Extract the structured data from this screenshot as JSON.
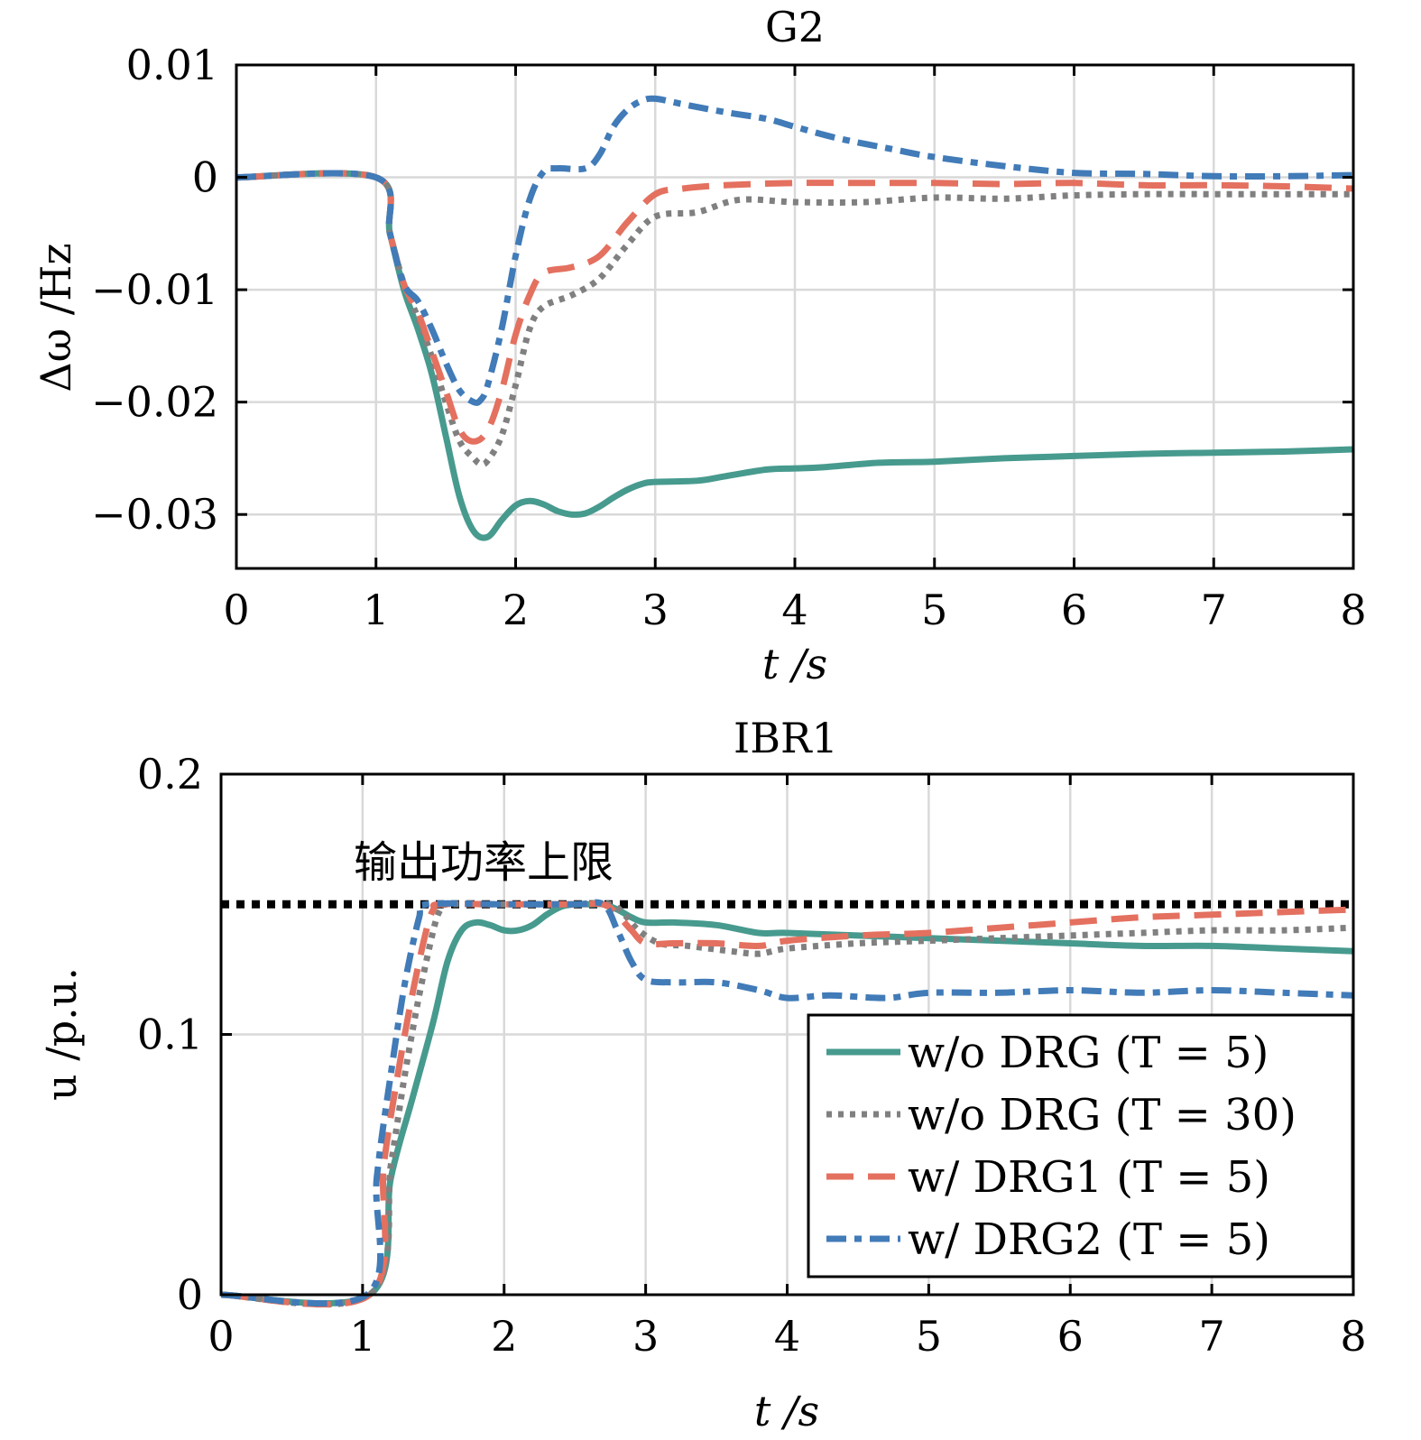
{
  "colors": {
    "teal": "#479a8e",
    "gray": "#808080",
    "red": "#e4705f",
    "blue": "#417bb8",
    "limit": "#000000",
    "grid": "#d9d9d9"
  },
  "chart_data": [
    {
      "type": "line",
      "title": "G2",
      "xlabel": "t /s",
      "ylabel": "Δω /Hz",
      "xlim": [
        0,
        8
      ],
      "ylim": [
        -0.0348,
        0.01
      ],
      "grid": true,
      "xticks": [
        0,
        1,
        2,
        3,
        4,
        5,
        6,
        7,
        8
      ],
      "xtick_labels": [
        "0",
        "1",
        "2",
        "3",
        "4",
        "5",
        "6",
        "7",
        "8"
      ],
      "yticks": [
        0.01,
        0,
        -0.01,
        -0.02,
        -0.03
      ],
      "ytick_labels": [
        "0.01",
        "0",
        "−0.01",
        "−0.02",
        "−0.03"
      ],
      "series": [
        {
          "name": "w/o DRG (T = 5)",
          "style": "solid",
          "color_key": "teal",
          "x": [
            0,
            1,
            1.1,
            1.2,
            1.3,
            1.4,
            1.5,
            1.6,
            1.7,
            1.8,
            1.9,
            2.0,
            2.1,
            2.2,
            2.3,
            2.4,
            2.5,
            2.6,
            2.7,
            2.8,
            2.9,
            3.0,
            3.3,
            3.5,
            3.8,
            4.0,
            4.2,
            4.6,
            5.0,
            5.5,
            6.0,
            6.5,
            7.0,
            7.5,
            8.0
          ],
          "y": [
            0,
            0,
            -0.005,
            -0.01,
            -0.0135,
            -0.0175,
            -0.023,
            -0.0285,
            -0.0315,
            -0.032,
            -0.0305,
            -0.0292,
            -0.0288,
            -0.0291,
            -0.0297,
            -0.03,
            -0.0299,
            -0.0293,
            -0.0285,
            -0.0278,
            -0.0273,
            -0.0271,
            -0.027,
            -0.0266,
            -0.026,
            -0.0259,
            -0.0258,
            -0.0254,
            -0.0253,
            -0.025,
            -0.0248,
            -0.0246,
            -0.0245,
            -0.0244,
            -0.0242
          ]
        },
        {
          "name": "w/o DRG (T = 30)",
          "style": "dotted",
          "color_key": "gray",
          "x": [
            0,
            1,
            1.1,
            1.2,
            1.3,
            1.4,
            1.5,
            1.6,
            1.7,
            1.75,
            1.8,
            1.9,
            2.0,
            2.1,
            2.2,
            2.4,
            2.6,
            2.8,
            3.0,
            3.3,
            3.6,
            4.0,
            4.5,
            5.0,
            5.5,
            6.0,
            6.5,
            7.0,
            7.5,
            8.0
          ],
          "y": [
            0,
            0,
            -0.005,
            -0.0095,
            -0.0125,
            -0.016,
            -0.02,
            -0.0235,
            -0.025,
            -0.0255,
            -0.0252,
            -0.023,
            -0.0185,
            -0.0135,
            -0.0115,
            -0.0105,
            -0.009,
            -0.006,
            -0.0035,
            -0.0031,
            -0.002,
            -0.0022,
            -0.0022,
            -0.0018,
            -0.0019,
            -0.0016,
            -0.0015,
            -0.0015,
            -0.0015,
            -0.0015
          ]
        },
        {
          "name": "w/ DRG1 (T = 5)",
          "style": "dashed",
          "color_key": "red",
          "x": [
            0,
            1,
            1.1,
            1.2,
            1.3,
            1.4,
            1.5,
            1.6,
            1.7,
            1.8,
            1.9,
            2.0,
            2.1,
            2.2,
            2.4,
            2.6,
            2.8,
            3.0,
            3.2,
            3.5,
            4.0,
            4.5,
            5.0,
            5.5,
            6.0,
            6.5,
            7.0,
            7.5,
            8.0
          ],
          "y": [
            0,
            0,
            -0.005,
            -0.0095,
            -0.012,
            -0.0155,
            -0.019,
            -0.0225,
            -0.0235,
            -0.0225,
            -0.019,
            -0.014,
            -0.0105,
            -0.0085,
            -0.008,
            -0.007,
            -0.004,
            -0.0015,
            -0.001,
            -0.0007,
            -0.0005,
            -0.0005,
            -0.0005,
            -0.0006,
            -0.0005,
            -0.0007,
            -0.0007,
            -0.0008,
            -0.001
          ]
        },
        {
          "name": "w/ DRG2 (T = 5)",
          "style": "dashdot",
          "color_key": "blue",
          "x": [
            0,
            1,
            1.1,
            1.2,
            1.3,
            1.4,
            1.5,
            1.6,
            1.7,
            1.75,
            1.8,
            1.9,
            2.0,
            2.1,
            2.2,
            2.3,
            2.5,
            2.6,
            2.7,
            2.8,
            2.9,
            3.0,
            3.2,
            3.5,
            3.8,
            4.0,
            4.3,
            4.7,
            5.0,
            5.5,
            6.0,
            6.5,
            7.0,
            7.5,
            8.0
          ],
          "y": [
            0,
            0,
            -0.005,
            -0.0095,
            -0.011,
            -0.0135,
            -0.0165,
            -0.019,
            -0.02,
            -0.0198,
            -0.0185,
            -0.0135,
            -0.007,
            -0.002,
            0.0005,
            0.0008,
            0.0008,
            0.002,
            0.0045,
            0.006,
            0.0068,
            0.007,
            0.0065,
            0.0058,
            0.0052,
            0.0045,
            0.0035,
            0.0025,
            0.0018,
            0.001,
            0.0004,
            0.0003,
            0.0001,
            0.0001,
            0.0002
          ]
        }
      ]
    },
    {
      "type": "line",
      "title": "IBR1",
      "xlabel": "t /s",
      "ylabel": "u /p.u.",
      "xlim": [
        0,
        8
      ],
      "ylim": [
        0,
        0.2
      ],
      "grid": true,
      "xticks": [
        0,
        1,
        2,
        3,
        4,
        5,
        6,
        7,
        8
      ],
      "xtick_labels": [
        "0",
        "1",
        "2",
        "3",
        "4",
        "5",
        "6",
        "7",
        "8"
      ],
      "yticks": [
        0.2,
        0.1,
        0
      ],
      "ytick_labels": [
        "0.2",
        "0.1",
        "0"
      ],
      "limit_line": {
        "value": 0.15,
        "label": "输出功率上限"
      },
      "legend": {
        "placement": "lower-right",
        "entries": [
          "w/o DRG (T = 5)",
          "w/o DRG (T = 30)",
          "w/ DRG1 (T = 5)",
          "w/ DRG2 (T = 5)"
        ]
      },
      "series": [
        {
          "name": "w/o DRG (T = 5)",
          "style": "solid",
          "color_key": "teal",
          "x": [
            0,
            1.05,
            1.2,
            1.35,
            1.5,
            1.6,
            1.7,
            1.8,
            1.9,
            2.0,
            2.1,
            2.2,
            2.3,
            2.4,
            2.5,
            2.6,
            2.7,
            2.8,
            2.9,
            3.0,
            3.2,
            3.5,
            3.8,
            4.0,
            4.5,
            5.0,
            5.5,
            6.0,
            6.5,
            7.0,
            7.5,
            8.0
          ],
          "y": [
            0,
            0,
            0.045,
            0.075,
            0.105,
            0.128,
            0.14,
            0.143,
            0.142,
            0.14,
            0.14,
            0.142,
            0.146,
            0.149,
            0.15,
            0.15,
            0.15,
            0.148,
            0.145,
            0.143,
            0.143,
            0.142,
            0.139,
            0.139,
            0.138,
            0.137,
            0.136,
            0.135,
            0.134,
            0.134,
            0.133,
            0.132
          ]
        },
        {
          "name": "w/o DRG (T = 30)",
          "style": "dotted",
          "color_key": "gray",
          "x": [
            0,
            1.05,
            1.2,
            1.3,
            1.4,
            1.5,
            1.55,
            1.6,
            2.0,
            2.5,
            2.75,
            2.85,
            2.95,
            3.1,
            3.3,
            3.6,
            3.8,
            4.0,
            4.5,
            5.0,
            5.5,
            6.0,
            6.5,
            7.0,
            7.5,
            8.0
          ],
          "y": [
            0,
            0,
            0.05,
            0.085,
            0.115,
            0.14,
            0.148,
            0.15,
            0.15,
            0.15,
            0.15,
            0.146,
            0.14,
            0.135,
            0.134,
            0.132,
            0.131,
            0.133,
            0.135,
            0.136,
            0.137,
            0.138,
            0.139,
            0.14,
            0.14,
            0.141
          ]
        },
        {
          "name": "w/ DRG1 (T = 5)",
          "style": "dashed",
          "color_key": "red",
          "x": [
            0,
            1.05,
            1.15,
            1.25,
            1.35,
            1.45,
            1.5,
            1.55,
            2.0,
            2.5,
            2.7,
            2.8,
            2.9,
            3.0,
            3.2,
            3.5,
            3.8,
            4.0,
            4.5,
            5.0,
            5.5,
            6.0,
            6.5,
            7.0,
            7.5,
            8.0
          ],
          "y": [
            0,
            0,
            0.05,
            0.085,
            0.115,
            0.14,
            0.148,
            0.15,
            0.15,
            0.15,
            0.15,
            0.146,
            0.14,
            0.135,
            0.135,
            0.135,
            0.134,
            0.136,
            0.138,
            0.139,
            0.141,
            0.143,
            0.145,
            0.146,
            0.147,
            0.148
          ]
        },
        {
          "name": "w/ DRG2 (T = 5)",
          "style": "dashdot",
          "color_key": "blue",
          "x": [
            0,
            1.03,
            1.1,
            1.2,
            1.3,
            1.4,
            1.45,
            2.0,
            2.5,
            2.7,
            2.8,
            2.9,
            3.0,
            3.2,
            3.5,
            3.8,
            4.0,
            4.3,
            4.7,
            5.0,
            5.5,
            6.0,
            6.5,
            7.0,
            7.5,
            8.0
          ],
          "y": [
            0,
            0,
            0.045,
            0.085,
            0.12,
            0.145,
            0.15,
            0.15,
            0.15,
            0.15,
            0.14,
            0.128,
            0.121,
            0.12,
            0.12,
            0.117,
            0.114,
            0.115,
            0.114,
            0.116,
            0.116,
            0.117,
            0.116,
            0.117,
            0.116,
            0.115
          ]
        }
      ]
    }
  ]
}
